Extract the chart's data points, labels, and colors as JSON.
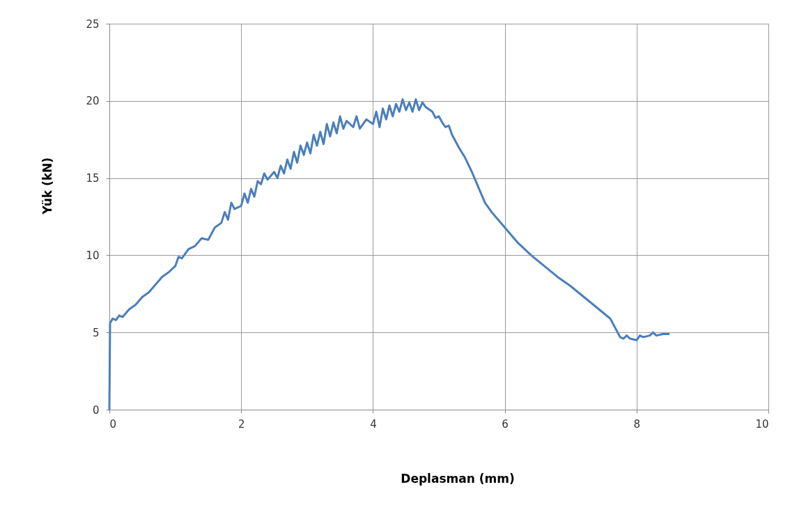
{
  "chart_data": {
    "type": "line",
    "xlabel": "Deplasman  (mm)",
    "ylabel": "Yük (kN)",
    "x": [
      0,
      0.01,
      0.05,
      0.1,
      0.15,
      0.2,
      0.3,
      0.4,
      0.5,
      0.6,
      0.7,
      0.8,
      0.9,
      1.0,
      1.05,
      1.1,
      1.2,
      1.3,
      1.4,
      1.5,
      1.6,
      1.7,
      1.75,
      1.8,
      1.85,
      1.9,
      2.0,
      2.05,
      2.1,
      2.15,
      2.2,
      2.25,
      2.3,
      2.35,
      2.4,
      2.5,
      2.55,
      2.6,
      2.65,
      2.7,
      2.75,
      2.8,
      2.85,
      2.9,
      2.95,
      3.0,
      3.05,
      3.1,
      3.15,
      3.2,
      3.25,
      3.3,
      3.35,
      3.4,
      3.45,
      3.5,
      3.55,
      3.6,
      3.7,
      3.75,
      3.8,
      3.9,
      4.0,
      4.05,
      4.1,
      4.15,
      4.2,
      4.25,
      4.3,
      4.35,
      4.4,
      4.45,
      4.5,
      4.55,
      4.6,
      4.65,
      4.7,
      4.75,
      4.8,
      4.9,
      4.95,
      5.0,
      5.05,
      5.1,
      5.15,
      5.2,
      5.3,
      5.4,
      5.5,
      5.6,
      5.7,
      5.8,
      5.9,
      6.0,
      6.2,
      6.4,
      6.6,
      6.8,
      7.0,
      7.2,
      7.4,
      7.6,
      7.75,
      7.8,
      7.85,
      7.9,
      8.0,
      8.05,
      8.1,
      8.2,
      8.25,
      8.3,
      8.4,
      8.5
    ],
    "series": [
      {
        "color": "#4a7ebb",
        "values": [
          0,
          5.6,
          5.9,
          5.8,
          6.1,
          6.0,
          6.5,
          6.8,
          7.3,
          7.6,
          8.1,
          8.6,
          8.9,
          9.3,
          9.9,
          9.8,
          10.4,
          10.6,
          11.1,
          11.0,
          11.8,
          12.1,
          12.8,
          12.3,
          13.4,
          13.0,
          13.2,
          14.0,
          13.4,
          14.3,
          13.8,
          14.8,
          14.6,
          15.3,
          14.9,
          15.4,
          15.0,
          15.8,
          15.3,
          16.2,
          15.6,
          16.7,
          16.0,
          17.1,
          16.5,
          17.3,
          16.6,
          17.8,
          17.1,
          18.0,
          17.2,
          18.5,
          17.7,
          18.6,
          17.9,
          19.0,
          18.2,
          18.7,
          18.3,
          19.0,
          18.2,
          18.8,
          18.5,
          19.3,
          18.3,
          19.5,
          18.8,
          19.7,
          19.0,
          19.8,
          19.3,
          20.1,
          19.4,
          19.9,
          19.3,
          20.1,
          19.4,
          19.9,
          19.6,
          19.3,
          18.9,
          19.0,
          18.6,
          18.3,
          18.4,
          17.8,
          17.0,
          16.3,
          15.4,
          14.4,
          13.4,
          12.8,
          12.3,
          11.8,
          10.8,
          10.0,
          9.3,
          8.6,
          8.0,
          7.3,
          6.6,
          5.9,
          4.7,
          4.6,
          4.8,
          4.6,
          4.5,
          4.8,
          4.7,
          4.8,
          5.0,
          4.8,
          4.9,
          4.9
        ]
      }
    ],
    "xlim": [
      0,
      10
    ],
    "xticks": [
      0,
      2,
      4,
      6,
      8,
      10
    ],
    "ylim": [
      0,
      25
    ],
    "yticks": [
      0,
      5,
      10,
      15,
      20,
      25
    ],
    "grid": true,
    "marker": "none",
    "line_style": "solid"
  }
}
